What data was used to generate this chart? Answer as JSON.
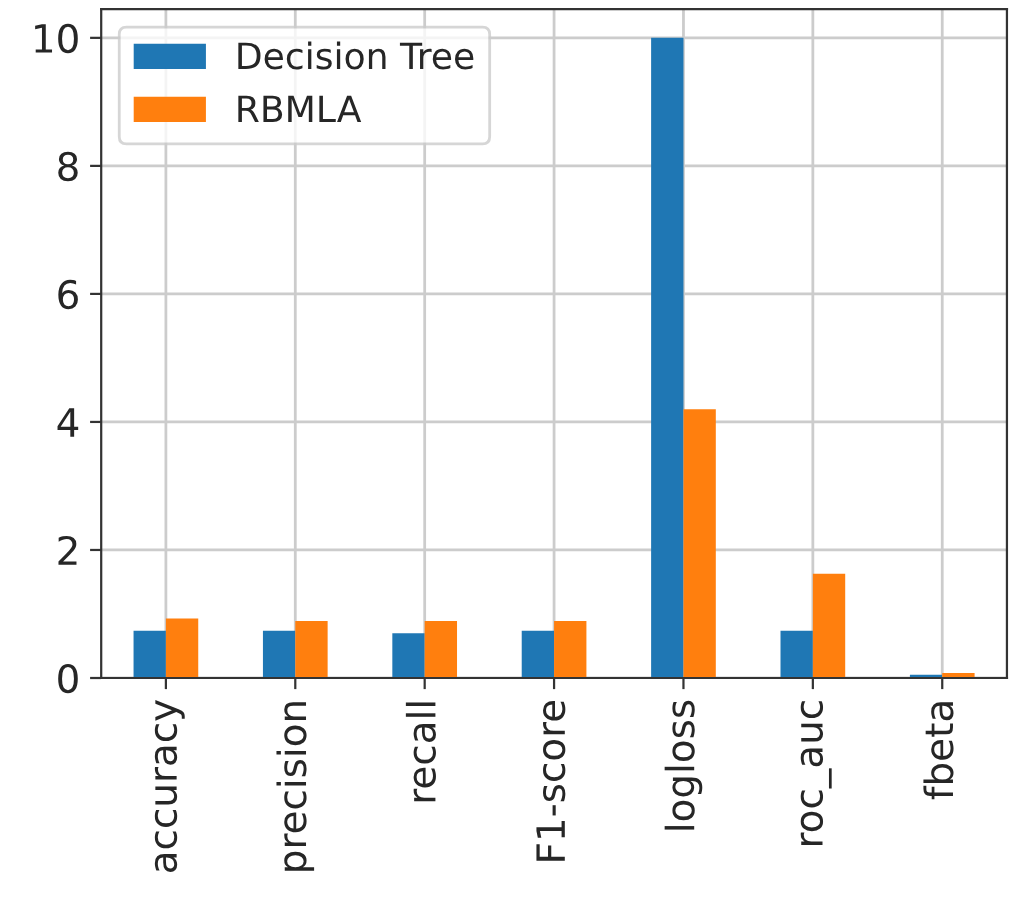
{
  "chart_data": {
    "type": "bar",
    "categories": [
      "accuracy",
      "precision",
      "recall",
      "F1-score",
      "logloss",
      "roc_auc",
      "fbeta"
    ],
    "series": [
      {
        "name": "Decision Tree",
        "color": "#1f77b4",
        "values": [
          0.74,
          0.74,
          0.7,
          0.74,
          10.0,
          0.74,
          0.05
        ]
      },
      {
        "name": "RBMLA",
        "color": "#ff7f0e",
        "values": [
          0.93,
          0.89,
          0.89,
          0.89,
          4.2,
          1.63,
          0.08
        ]
      }
    ],
    "ylim": [
      0,
      10.45
    ],
    "yticks": [
      0,
      2,
      4,
      6,
      8,
      10
    ],
    "grid": true,
    "legend": "top left"
  }
}
